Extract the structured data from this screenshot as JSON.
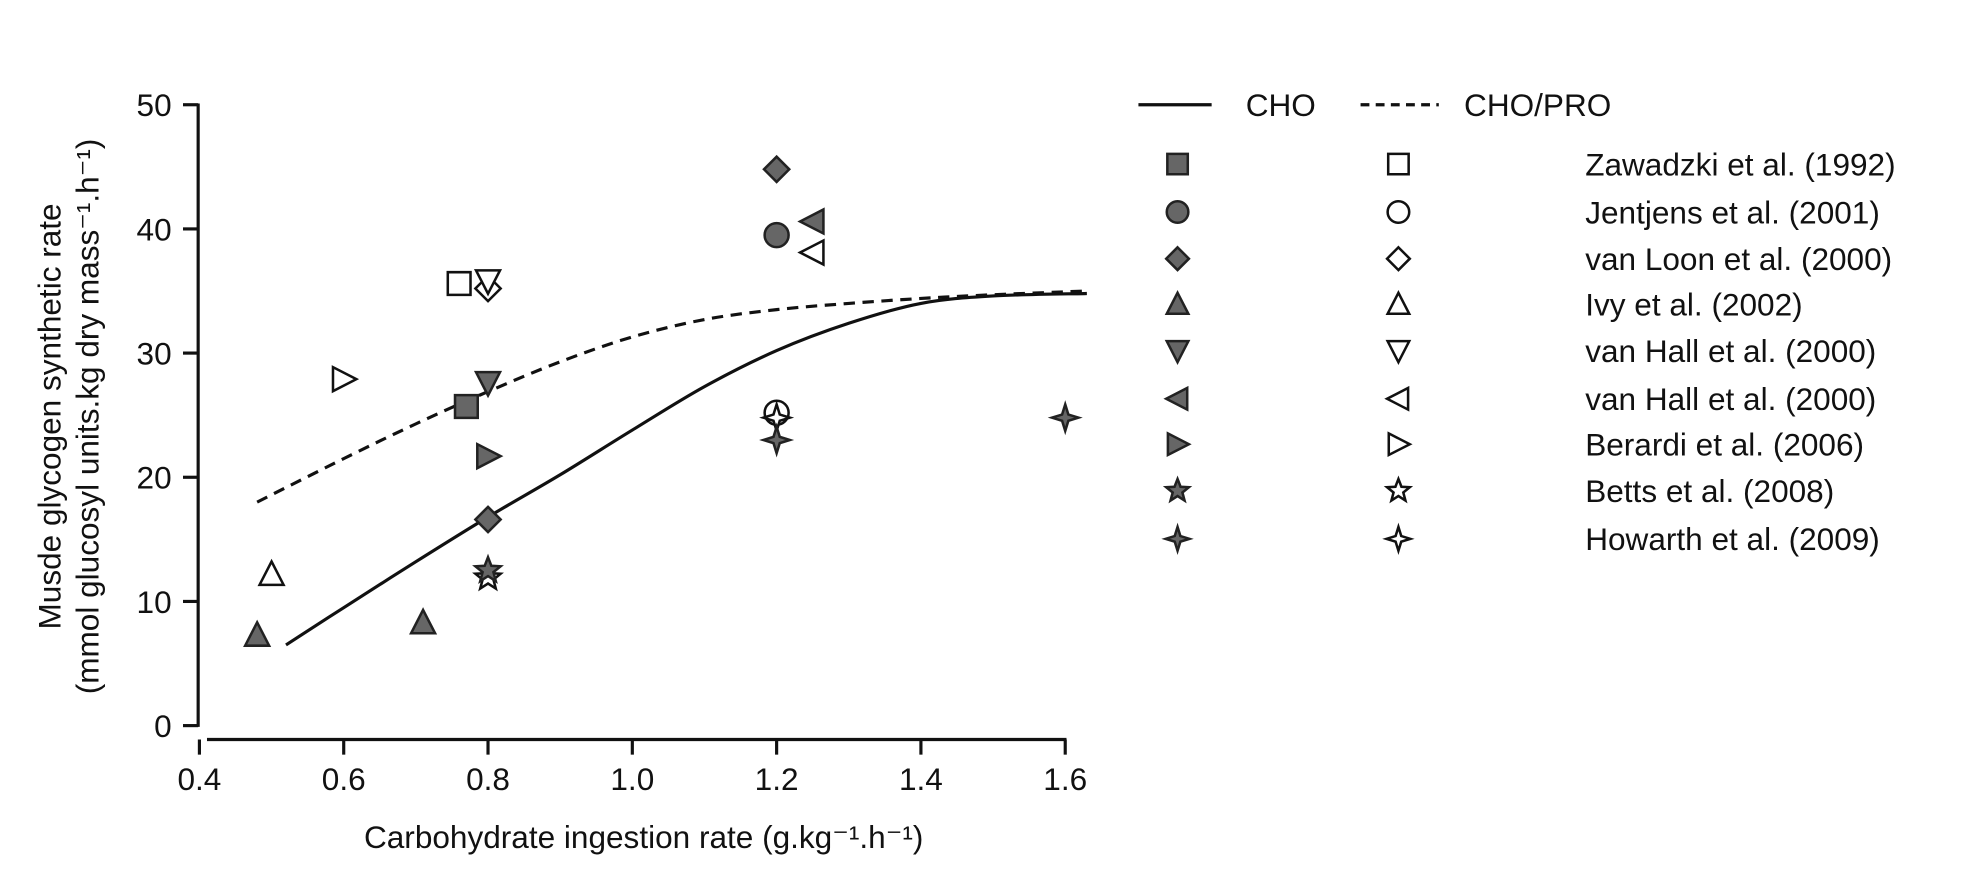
{
  "chart_data": {
    "type": "scatter",
    "xlabel": "Carbohydrate ingestion rate (g.kg⁻¹.h⁻¹)",
    "ylabel_line1": "Musde glycogen synthetic rate",
    "ylabel_line2": "(mmol glucosyl units.kg dry mass⁻¹.h⁻¹)",
    "xlim": [
      0.4,
      1.6
    ],
    "ylim": [
      0,
      50
    ],
    "x_ticks": [
      "0.4",
      "0.6",
      "0.8",
      "1.0",
      "1.2",
      "1.4",
      "1.6"
    ],
    "y_ticks": [
      "0",
      "10",
      "20",
      "30",
      "40",
      "50"
    ],
    "grid": false,
    "legend_placement": "right",
    "colors": {
      "filled": "#666666",
      "stroke": "#222222",
      "open": "#ffffff",
      "line": "#111111"
    },
    "curves": [
      {
        "name": "CHO",
        "style": "solid",
        "x": [
          0.52,
          0.6,
          0.7,
          0.8,
          0.9,
          1.0,
          1.1,
          1.2,
          1.3,
          1.4,
          1.5,
          1.63
        ],
        "y": [
          6.5,
          9.5,
          13.2,
          16.8,
          20.2,
          23.8,
          27.3,
          30.2,
          32.4,
          34.0,
          34.6,
          34.8
        ]
      },
      {
        "name": "CHO/PRO",
        "style": "dashed",
        "x": [
          0.48,
          0.6,
          0.7,
          0.8,
          0.9,
          1.0,
          1.1,
          1.2,
          1.3,
          1.4,
          1.5,
          1.63
        ],
        "y": [
          18.0,
          21.5,
          24.3,
          26.9,
          29.3,
          31.3,
          32.7,
          33.5,
          34.0,
          34.4,
          34.7,
          35.0
        ]
      }
    ],
    "series": [
      {
        "name": "Zawadzki et al. (1992)",
        "marker": "square",
        "CHO": [
          [
            0.77,
            25.7
          ]
        ],
        "CHO_PRO": [
          [
            0.76,
            35.6
          ]
        ]
      },
      {
        "name": "Jentjens et al. (2001)",
        "marker": "circle",
        "CHO": [
          [
            1.2,
            39.5
          ]
        ],
        "CHO_PRO": [
          [
            1.2,
            25.2
          ]
        ]
      },
      {
        "name": "van Loon et al. (2000)",
        "marker": "diamond",
        "CHO": [
          [
            1.2,
            44.8
          ],
          [
            0.8,
            16.6
          ]
        ],
        "CHO_PRO": [
          [
            0.8,
            35.2
          ]
        ]
      },
      {
        "name": "Ivy et al. (2002)",
        "marker": "triangle-up",
        "CHO": [
          [
            0.48,
            7.3
          ],
          [
            0.71,
            8.3
          ]
        ],
        "CHO_PRO": [
          [
            0.5,
            12.2
          ]
        ]
      },
      {
        "name": "van Hall et al. (2000)",
        "marker": "triangle-down",
        "CHO": [
          [
            0.8,
            27.6
          ]
        ],
        "CHO_PRO": [
          [
            0.8,
            35.8
          ]
        ]
      },
      {
        "name": "van Hall et al. (2000)",
        "marker": "triangle-left",
        "CHO": [
          [
            1.25,
            40.6
          ]
        ],
        "CHO_PRO": [
          [
            1.25,
            38.1
          ]
        ]
      },
      {
        "name": "Berardi et al. (2006)",
        "marker": "triangle-right",
        "CHO": [
          [
            0.8,
            21.7
          ]
        ],
        "CHO_PRO": [
          [
            0.6,
            27.9
          ]
        ]
      },
      {
        "name": "Betts et al. (2008)",
        "marker": "star5",
        "CHO": [
          [
            0.8,
            12.5
          ]
        ],
        "CHO_PRO": [
          [
            0.8,
            11.9
          ]
        ]
      },
      {
        "name": "Howarth et al. (2009)",
        "marker": "star4",
        "CHO": [
          [
            1.2,
            23.0
          ],
          [
            1.6,
            24.8
          ]
        ],
        "CHO_PRO": [
          [
            1.2,
            24.8
          ]
        ]
      }
    ]
  }
}
